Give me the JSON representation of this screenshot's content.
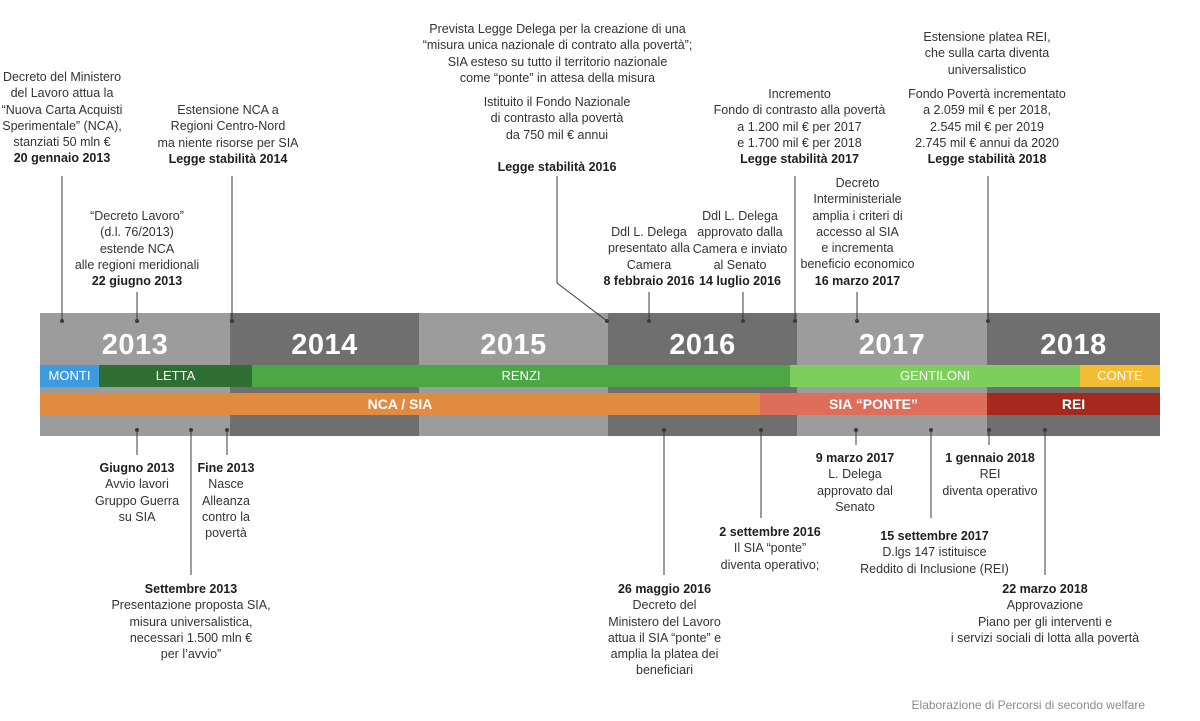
{
  "years": [
    {
      "label": "2013",
      "color": "#9c9c9c"
    },
    {
      "label": "2014",
      "color": "#6f6f6f"
    },
    {
      "label": "2015",
      "color": "#9c9c9c"
    },
    {
      "label": "2016",
      "color": "#6f6f6f"
    },
    {
      "label": "2017",
      "color": "#9c9c9c"
    },
    {
      "label": "2018",
      "color": "#6f6f6f"
    }
  ],
  "governments": [
    {
      "label": "MONTI",
      "color": "#3d9be0"
    },
    {
      "label": "LETTA",
      "color": "#2f6e33"
    },
    {
      "label": "RENZI",
      "color": "#4ca745"
    },
    {
      "label": "GENTILONI",
      "color": "#7ccf5b"
    },
    {
      "label": "CONTE",
      "color": "#f3bd36"
    }
  ],
  "programs": [
    {
      "label": "NCA / SIA",
      "color": "#e08b40"
    },
    {
      "label": "SIA “PONTE”",
      "color": "#de6d59"
    },
    {
      "label": "REI",
      "color": "#a52a1d"
    }
  ],
  "top_annotations": [
    {
      "lines": [
        "Decreto del Ministero",
        "del Lavoro attua la",
        "“Nuova Carta Acquisti",
        "Sperimentale” (NCA),",
        "stanziati 50 mln €"
      ],
      "bold": "20 gennaio 2013"
    },
    {
      "lines": [
        "“Decreto Lavoro”",
        "(d.l. 76/2013)",
        "estende NCA",
        "alle regioni meridionali"
      ],
      "bold": "22 giugno 2013"
    },
    {
      "lines": [
        "Estensione NCA a",
        "Regioni Centro-Nord",
        "ma niente risorse per SIA"
      ],
      "bold": "Legge stabilità 2014"
    },
    {
      "lines": [
        "Prevista Legge Delega per la creazione di una",
        "“misura unica nazionale di contrato alla povertà”;",
        "SIA esteso su tutto il territorio nazionale",
        "come “ponte” in attesa della misura"
      ],
      "bold": ""
    },
    {
      "lines": [
        "Istituito il Fondo Nazionale",
        "di contrasto alla povertà",
        "da 750 mil € annui"
      ],
      "bold": "Legge stabilità 2016"
    },
    {
      "lines": [
        "Ddl L. Delega",
        "presentato alla",
        "Camera"
      ],
      "bold": "8 febbraio 2016"
    },
    {
      "lines": [
        "Ddl L. Delega",
        "approvato dalla",
        "Camera e inviato",
        "al Senato"
      ],
      "bold": "14 luglio 2016"
    },
    {
      "lines": [
        "Incremento",
        "Fondo di contrasto alla povertà",
        "a 1.200 mil € per 2017",
        "e 1.700 mil € per 2018"
      ],
      "bold": "Legge stabilità 2017"
    },
    {
      "lines": [
        "Decreto",
        "Interministeriale",
        "amplia i criteri di",
        "accesso al SIA",
        "e incrementa",
        "beneficio economico"
      ],
      "bold": "16 marzo 2017"
    },
    {
      "lines": [
        "Estensione platea REI,",
        "che sulla carta diventa",
        "universalistico"
      ],
      "bold": ""
    },
    {
      "lines": [
        "Fondo Povertà incrementato",
        "a 2.059 mil €  per 2018,",
        "2.545 mil € per 2019",
        "2.745 mil € annui da 2020"
      ],
      "bold": "Legge stabilità 2018"
    }
  ],
  "bottom_annotations": [
    {
      "bold": "Giugno 2013",
      "lines": [
        "Avvio lavori",
        "Gruppo Guerra",
        "su SIA"
      ]
    },
    {
      "bold": "Fine 2013",
      "lines": [
        "Nasce",
        "Alleanza",
        "contro la",
        "povertà"
      ]
    },
    {
      "bold": "Settembre 2013",
      "lines": [
        "Presentazione proposta SIA,",
        "misura universalistica,",
        "necessari 1.500 mln €",
        "per l’avvio”"
      ]
    },
    {
      "bold": "26 maggio 2016",
      "lines": [
        "Decreto del",
        "Ministero del Lavoro",
        "attua il SIA “ponte” e",
        "amplia la platea dei",
        "beneficiari"
      ]
    },
    {
      "bold": "2 settembre 2016",
      "lines": [
        "Il SIA “ponte”",
        "diventa operativo;"
      ]
    },
    {
      "bold": "9 marzo 2017",
      "lines": [
        "L. Delega",
        "approvato dal",
        "Senato"
      ]
    },
    {
      "bold": "15 settembre 2017",
      "lines": [
        "D.lgs 147 istituisce",
        "Reddito di Inclusione (REI)"
      ]
    },
    {
      "bold": "1 gennaio 2018",
      "lines": [
        "REI",
        "diventa operativo"
      ]
    },
    {
      "bold": "22 marzo 2018",
      "lines": [
        "Approvazione",
        "Piano per gli interventi e",
        "i servizi sociali di lotta alla povertà"
      ]
    }
  ],
  "credit": "Elaborazione di Percorsi di secondo welfare"
}
